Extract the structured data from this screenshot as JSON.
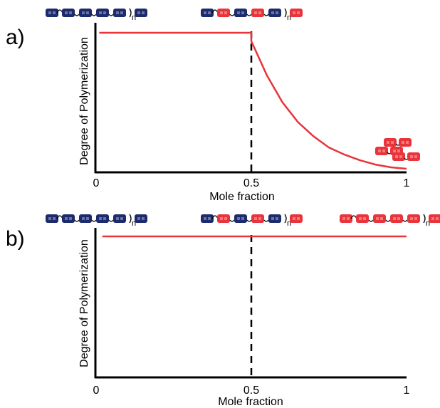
{
  "colors": {
    "curve": "#e8343a",
    "blue_unit": "#1c2a6e",
    "red_unit": "#e8343a",
    "axis": "#000000",
    "guide": "#000000"
  },
  "chart_data": [
    {
      "type": "line",
      "panel_label": "a)",
      "xlabel": "Mole fraction",
      "ylabel": "Degree of Polymerization",
      "xlim": [
        0,
        1
      ],
      "ylim": [
        0,
        1
      ],
      "x_ticks": [
        "0",
        "0.5",
        "1"
      ],
      "x_tick_values": [
        0,
        0.5,
        1
      ],
      "guide_x": 0.5,
      "series": [
        {
          "x": [
            0.01,
            0.1,
            0.2,
            0.3,
            0.4,
            0.5,
            0.5,
            0.55,
            0.6,
            0.65,
            0.7,
            0.75,
            0.8,
            0.85,
            0.9,
            0.95,
            1.0
          ],
          "y": [
            0.98,
            0.98,
            0.98,
            0.98,
            0.98,
            0.98,
            0.92,
            0.68,
            0.49,
            0.35,
            0.25,
            0.17,
            0.12,
            0.08,
            0.05,
            0.03,
            0.02
          ]
        }
      ],
      "structures": [
        {
          "name": "homopolymer-blue",
          "at": 0.0,
          "units": [
            "blue",
            "blue",
            "blue",
            "blue"
          ],
          "subscript": "n"
        },
        {
          "name": "alternating-copolymer",
          "at": 0.5,
          "units": [
            "red",
            "blue",
            "red",
            "blue"
          ],
          "subscript": "n"
        }
      ],
      "monomers": {
        "at": 1.0,
        "color": "red",
        "count": 3
      }
    },
    {
      "type": "line",
      "panel_label": "b)",
      "xlabel": "Mole fraction",
      "ylabel": "Degree of Polymerization",
      "xlim": [
        0,
        1
      ],
      "ylim": [
        0,
        1
      ],
      "x_ticks": [
        "0",
        "0.5",
        "1"
      ],
      "x_tick_values": [
        0,
        0.5,
        1
      ],
      "guide_x": 0.5,
      "series": [
        {
          "x": [
            0.02,
            1.0
          ],
          "y": [
            0.98,
            0.98
          ]
        }
      ],
      "structures": [
        {
          "name": "homopolymer-blue",
          "at": 0.0,
          "units": [
            "blue",
            "blue",
            "blue",
            "blue"
          ],
          "subscript": "n"
        },
        {
          "name": "alternating-copolymer",
          "at": 0.5,
          "units": [
            "red",
            "blue",
            "red",
            "blue"
          ],
          "subscript": "n"
        },
        {
          "name": "homopolymer-red",
          "at": 1.0,
          "units": [
            "red",
            "red",
            "red",
            "red"
          ],
          "subscript": "n"
        }
      ]
    }
  ]
}
